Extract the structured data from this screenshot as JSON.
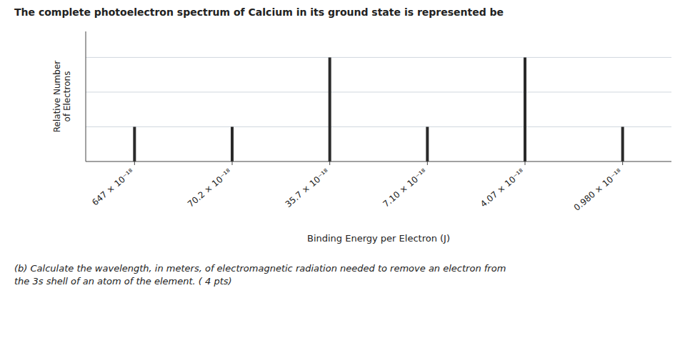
{
  "chart_data": {
    "type": "bar",
    "title": "The complete photoelectron spectrum of Calcium in its ground state is represented be",
    "subtitle": "(b) Calculate the wavelength, in meters, of electromagnetic radiation needed to remove an electron from\nthe 3s shell of an atom of the element.  ( 4 pts)",
    "x_label": "Binding Energy per Electron (J)",
    "y_label": "Relative Number\nof Electrons",
    "categories": [
      "647 × 10⁻¹⁸",
      "70.2 × 10⁻¹⁸",
      "35.7 × 10⁻¹⁸",
      "7.10 × 10⁻¹⁸",
      "4.07 × 10⁻¹⁸",
      "0.980 × 10⁻¹⁸"
    ],
    "values": [
      2,
      2,
      6,
      2,
      6,
      2
    ],
    "color": "#2a2a2a",
    "ylim": [
      0,
      7.5
    ],
    "yticks": [
      2,
      4,
      6
    ],
    "grid": true,
    "tick_labels": "x"
  }
}
